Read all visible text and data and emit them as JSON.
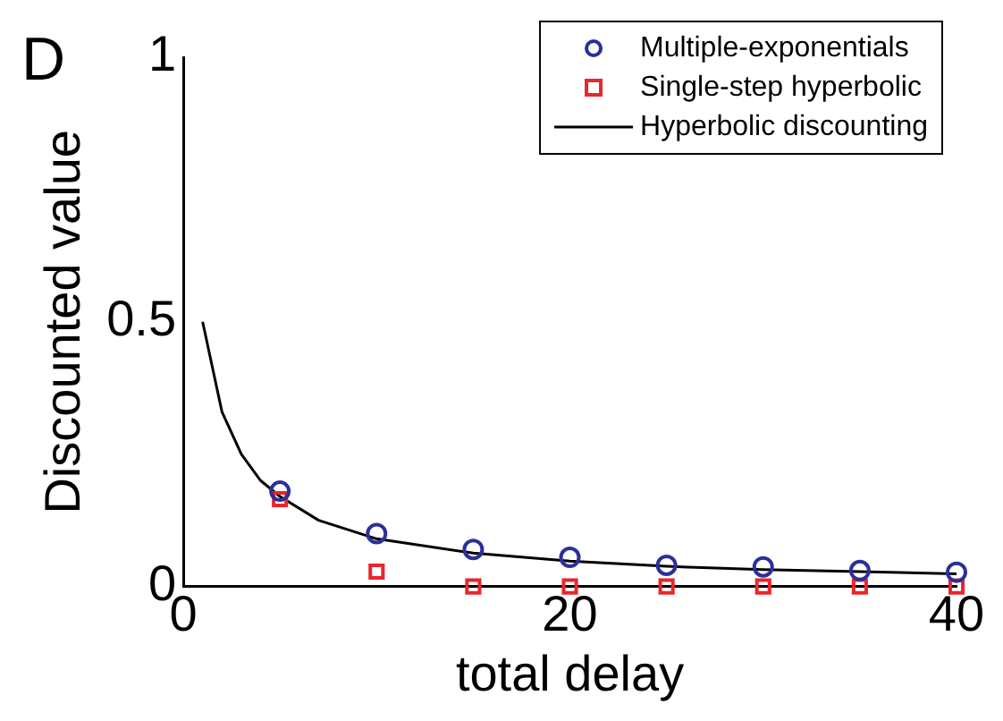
{
  "chart_data": {
    "type": "scatter",
    "xlabel": "total delay",
    "ylabel": "Discounted value",
    "annotations": [
      "D"
    ],
    "xlim": [
      0,
      40
    ],
    "ylim": [
      0,
      1
    ],
    "xticks": [
      0,
      20,
      40
    ],
    "yticks": [
      0,
      0.5,
      1
    ],
    "grid": false,
    "legend": "top right",
    "series": [
      {
        "name": "Multiple-exponentials",
        "marker": "circle",
        "color": "#2b2f9a",
        "x": [
          5,
          10,
          15,
          20,
          25,
          30,
          35,
          40
        ],
        "values": [
          0.18,
          0.1,
          0.07,
          0.055,
          0.04,
          0.037,
          0.03,
          0.027
        ]
      },
      {
        "name": "Single-step hyperbolic",
        "marker": "square",
        "color": "#e8262b",
        "x": [
          5,
          10,
          15,
          20,
          25,
          30,
          35,
          40
        ],
        "values": [
          0.165,
          0.028,
          0,
          0,
          0,
          0,
          0,
          0
        ]
      },
      {
        "name": "Hyperbolic discounting",
        "type": "line",
        "marker": "none",
        "line_style": "solid",
        "color": "#000000",
        "x": [
          1,
          2,
          3,
          4,
          5,
          7,
          10,
          15,
          20,
          25,
          30,
          35,
          40
        ],
        "values": [
          0.5,
          0.33,
          0.25,
          0.2,
          0.17,
          0.125,
          0.09,
          0.063,
          0.048,
          0.038,
          0.032,
          0.028,
          0.024
        ]
      }
    ]
  }
}
